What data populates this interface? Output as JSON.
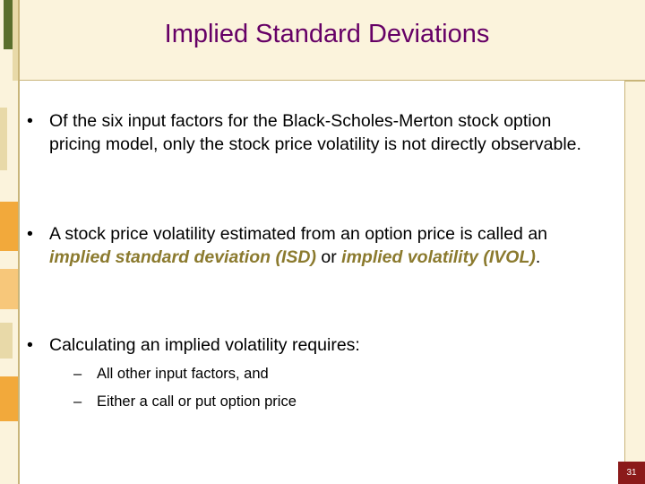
{
  "title": "Implied Standard Deviations",
  "bullets": [
    {
      "text": "Of the six input factors for the Black-Scholes-Merton stock option pricing model, only the stock price volatility is not directly observable."
    },
    {
      "segments": [
        "A stock price volatility estimated from an option price is called an ",
        "implied standard deviation (ISD)",
        " or ",
        "implied volatility (IVOL)",
        "."
      ]
    },
    {
      "text": "Calculating an implied volatility requires:",
      "sub": [
        "All other input factors, and",
        "Either a call or put option price"
      ]
    }
  ],
  "page_number": "31"
}
